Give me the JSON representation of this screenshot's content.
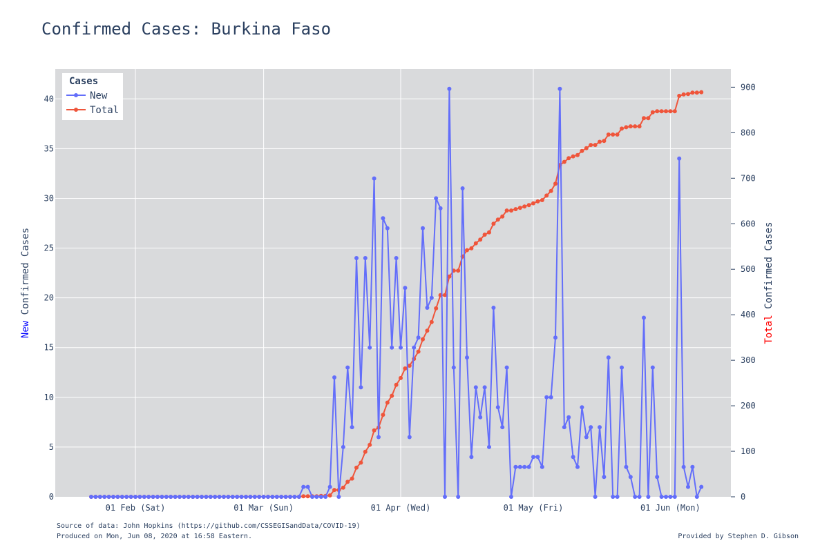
{
  "chart_data": {
    "type": "line",
    "title": "Confirmed Cases: Burkina Faso",
    "x_start_label": "2020-01-22",
    "x_tick_labels": [
      "01 Feb (Sat)",
      "01 Mar (Sun)",
      "01 Apr (Wed)",
      "01 May (Fri)",
      "01 Jun (Mon)"
    ],
    "y_left": {
      "label_highlight": "New",
      "label_rest": " Confirmed Cases",
      "highlight_color": "#0000ff",
      "range": [
        0,
        43
      ],
      "ticks": [
        0,
        5,
        10,
        15,
        20,
        25,
        30,
        35,
        40
      ]
    },
    "y_right": {
      "label_highlight": "Total",
      "label_rest": " Confirmed Cases",
      "highlight_color": "#ff0000",
      "range": [
        0,
        940
      ],
      "ticks": [
        0,
        100,
        200,
        300,
        400,
        500,
        600,
        700,
        800,
        900
      ]
    },
    "legend": {
      "title": "Cases",
      "placement": "top-left"
    },
    "grid": true,
    "series": [
      {
        "name": "New",
        "axis": "left",
        "color": "#636efa",
        "values": [
          0,
          0,
          0,
          0,
          0,
          0,
          0,
          0,
          0,
          0,
          0,
          0,
          0,
          0,
          0,
          0,
          0,
          0,
          0,
          0,
          0,
          0,
          0,
          0,
          0,
          0,
          0,
          0,
          0,
          0,
          0,
          0,
          0,
          0,
          0,
          0,
          0,
          0,
          0,
          0,
          0,
          0,
          0,
          0,
          0,
          0,
          0,
          0,
          1,
          1,
          0,
          0,
          0,
          0,
          1,
          12,
          0,
          5,
          13,
          7,
          24,
          11,
          24,
          15,
          32,
          6,
          28,
          27,
          15,
          24,
          15,
          21,
          6,
          15,
          16,
          27,
          19,
          20,
          30,
          29,
          0,
          41,
          13,
          0,
          31,
          14,
          4,
          11,
          8,
          11,
          5,
          19,
          9,
          7,
          13,
          0,
          3,
          3,
          3,
          3,
          4,
          4,
          3,
          10,
          10,
          16,
          41,
          7,
          8,
          4,
          3,
          9,
          6,
          7,
          0,
          7,
          2,
          14,
          0,
          0,
          13,
          3,
          2,
          0,
          0,
          18,
          0,
          13,
          2,
          0,
          0,
          0,
          0,
          34,
          3,
          1,
          3,
          0,
          1
        ]
      },
      {
        "name": "Total",
        "axis": "right",
        "color": "#ef553b",
        "values": [
          0,
          0,
          0,
          0,
          0,
          0,
          0,
          0,
          0,
          0,
          0,
          0,
          0,
          0,
          0,
          0,
          0,
          0,
          0,
          0,
          0,
          0,
          0,
          0,
          0,
          0,
          0,
          0,
          0,
          0,
          0,
          0,
          0,
          0,
          0,
          0,
          0,
          0,
          0,
          0,
          0,
          0,
          0,
          0,
          0,
          0,
          0,
          0,
          1,
          1,
          1,
          1,
          2,
          2,
          3,
          15,
          15,
          20,
          33,
          40,
          64,
          75,
          99,
          114,
          146,
          152,
          180,
          207,
          222,
          246,
          261,
          282,
          288,
          303,
          319,
          346,
          365,
          384,
          414,
          443,
          443,
          484,
          497,
          497,
          528,
          542,
          546,
          557,
          565,
          576,
          581,
          600,
          609,
          616,
          629,
          629,
          632,
          635,
          638,
          641,
          645,
          649,
          652,
          662,
          672,
          688,
          729,
          736,
          744,
          748,
          751,
          760,
          766,
          773,
          773,
          780,
          782,
          796,
          796,
          796,
          809,
          812,
          814,
          814,
          814,
          832,
          832,
          845,
          847,
          847,
          847,
          847,
          847,
          881,
          884,
          885,
          888,
          888,
          889
        ]
      }
    ]
  },
  "footer": {
    "source": "Source of data: John Hopkins (https://github.com/CSSEGISandData/COVID-19)",
    "produced": "Produced on Mon, Jun 08, 2020 at 16:58 Eastern.",
    "credit": "Provided by Stephen D. Gibson"
  }
}
